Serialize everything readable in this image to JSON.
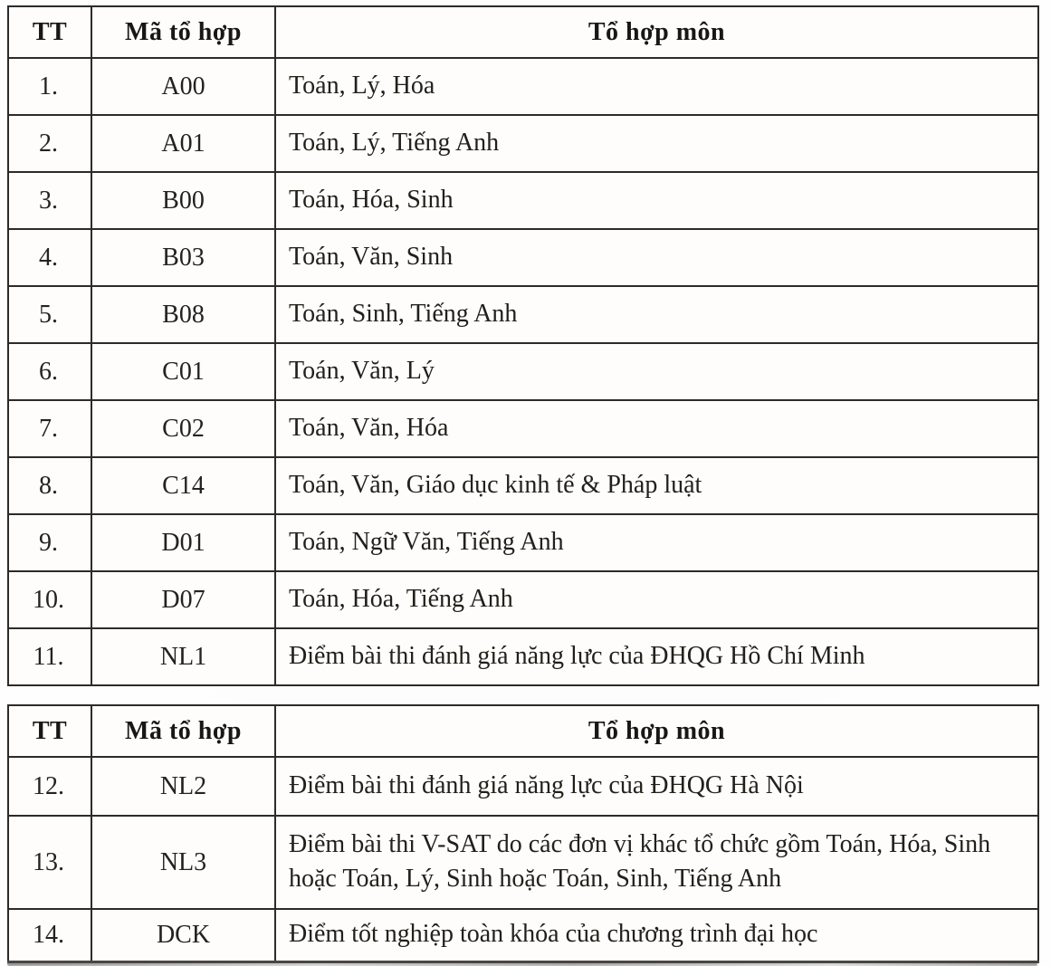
{
  "page": {
    "background": "#fefefe",
    "text_color": "#1d1d1d",
    "border_color": "#2c2b29"
  },
  "tables": [
    {
      "headers": [
        "TT",
        "Mã tổ hợp",
        "Tổ hợp môn"
      ],
      "rows": [
        {
          "tt": "1.",
          "code": "A00",
          "subjects": "Toán, Lý, Hóa"
        },
        {
          "tt": "2.",
          "code": "A01",
          "subjects": "Toán, Lý, Tiếng Anh"
        },
        {
          "tt": "3.",
          "code": "B00",
          "subjects": "Toán, Hóa, Sinh"
        },
        {
          "tt": "4.",
          "code": "B03",
          "subjects": "Toán, Văn, Sinh"
        },
        {
          "tt": "5.",
          "code": "B08",
          "subjects": "Toán, Sinh, Tiếng Anh"
        },
        {
          "tt": "6.",
          "code": "C01",
          "subjects": "Toán, Văn, Lý"
        },
        {
          "tt": "7.",
          "code": "C02",
          "subjects": "Toán, Văn, Hóa"
        },
        {
          "tt": "8.",
          "code": "C14",
          "subjects": "Toán, Văn, Giáo dục kinh tế & Pháp luật"
        },
        {
          "tt": "9.",
          "code": "D01",
          "subjects": "Toán, Ngữ Văn, Tiếng Anh"
        },
        {
          "tt": "10.",
          "code": "D07",
          "subjects": "Toán, Hóa, Tiếng Anh"
        },
        {
          "tt": "11.",
          "code": "NL1",
          "subjects": "Điểm bài thi đánh giá năng lực của ĐHQG Hồ Chí Minh"
        }
      ]
    },
    {
      "headers": [
        "TT",
        "Mã tổ hợp",
        "Tổ hợp môn"
      ],
      "rows": [
        {
          "tt": "12.",
          "code": "NL2",
          "subjects": "Điểm bài thi đánh giá năng lực của ĐHQG Hà Nội"
        },
        {
          "tt": "13.",
          "code": "NL3",
          "subjects": "Điểm bài thi V-SAT do các đơn vị khác tổ chức gồm Toán, Hóa, Sinh hoặc Toán, Lý, Sinh hoặc Toán, Sinh, Tiếng Anh"
        },
        {
          "tt": "14.",
          "code": "DCK",
          "subjects": "Điểm tốt nghiệp toàn khóa của chương trình đại học"
        }
      ]
    }
  ]
}
